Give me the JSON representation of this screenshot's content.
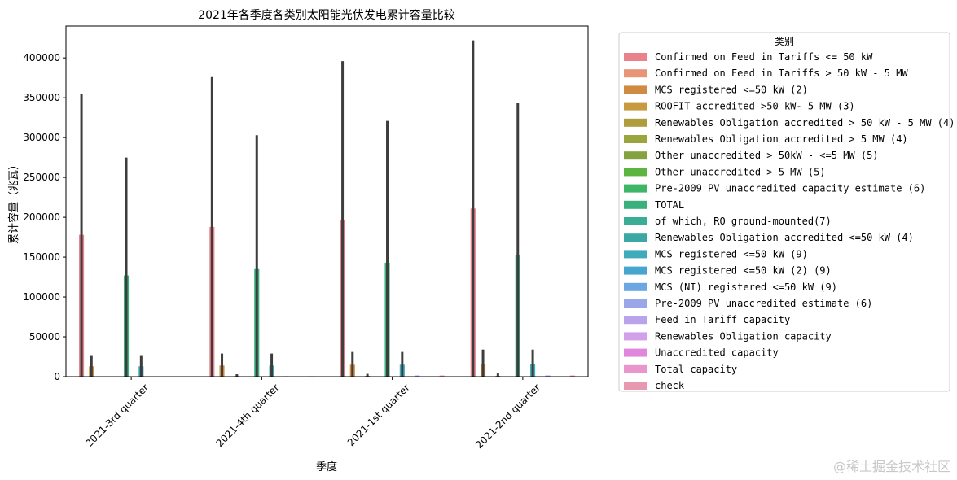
{
  "chart_data": {
    "type": "bar",
    "title": "2021年各季度各类别太阳能光伏发电累计容量比较",
    "xlabel": "季度",
    "ylabel": "累计容量（兆瓦）",
    "ylim": [
      0,
      440000
    ],
    "yticks": [
      0,
      50000,
      100000,
      150000,
      200000,
      250000,
      300000,
      350000,
      400000
    ],
    "ytick_labels": [
      "0",
      "50000",
      "100000",
      "150000",
      "200000",
      "250000",
      "300000",
      "350000",
      "400000"
    ],
    "categories": [
      "2021-3rd quarter",
      "2021-4th quarter",
      "2021-1st quarter",
      "2021-2nd quarter"
    ],
    "legend_title": "类别",
    "legend_position": "outside-right",
    "series": [
      {
        "name": "Confirmed on Feed in Tariffs  <= 50 kW",
        "color": "#e8828b",
        "values": [
          178000,
          188000,
          197000,
          211000
        ],
        "ci_high": [
          355000,
          376000,
          396000,
          422000
        ]
      },
      {
        "name": "Confirmed on Feed in Tariffs  > 50 kW - 5 MW",
        "color": "#e89477",
        "values": [
          null,
          null,
          null,
          null
        ],
        "ci_high": [
          null,
          null,
          null,
          null
        ]
      },
      {
        "name": "MCS registered <=50 kW (2)",
        "color": "#d08a41",
        "values": [
          13000,
          14000,
          15000,
          16000
        ],
        "ci_high": [
          27000,
          29000,
          31000,
          34000
        ]
      },
      {
        "name": "ROOFIT accredited >50 kW- 5 MW (3)",
        "color": "#c89a40",
        "values": [
          null,
          null,
          null,
          null
        ],
        "ci_high": [
          null,
          null,
          null,
          null
        ]
      },
      {
        "name": "Renewables Obligation accredited > 50 kW - 5 MW (4)",
        "color": "#ad9d3c",
        "values": [
          null,
          null,
          null,
          null
        ],
        "ci_high": [
          null,
          null,
          null,
          null
        ]
      },
      {
        "name": "Renewables Obligation accredited > 5 MW (4)",
        "color": "#9aa63d",
        "values": [
          null,
          1000,
          1000,
          1000
        ],
        "ci_high": [
          null,
          3000,
          3500,
          4000
        ]
      },
      {
        "name": "Other unaccredited > 50kW - <=5 MW (5)",
        "color": "#84a33f",
        "values": [
          null,
          null,
          null,
          null
        ],
        "ci_high": [
          null,
          null,
          null,
          null
        ]
      },
      {
        "name": "Other unaccredited > 5 MW (5)",
        "color": "#5db541",
        "values": [
          null,
          null,
          null,
          null
        ],
        "ci_high": [
          null,
          null,
          null,
          null
        ]
      },
      {
        "name": "Pre-2009 PV unaccredited capacity estimate (6)",
        "color": "#3fb567",
        "values": [
          null,
          null,
          null,
          null
        ],
        "ci_high": [
          null,
          null,
          null,
          null
        ]
      },
      {
        "name": "TOTAL",
        "color": "#3ab07e",
        "values": [
          127000,
          135000,
          143000,
          153000
        ],
        "ci_high": [
          275000,
          303000,
          321000,
          344000
        ]
      },
      {
        "name": "of which, RO ground-mounted(7)",
        "color": "#3aad94",
        "values": [
          null,
          null,
          null,
          null
        ],
        "ci_high": [
          null,
          null,
          null,
          null
        ]
      },
      {
        "name": "Renewables Obligation accredited <=50 kW (4)",
        "color": "#3ca8a5",
        "values": [
          null,
          null,
          null,
          null
        ],
        "ci_high": [
          null,
          null,
          null,
          null
        ]
      },
      {
        "name": "MCS registered <=50 kW (9)",
        "color": "#3fabbb",
        "values": [
          13000,
          14000,
          15000,
          16000
        ],
        "ci_high": [
          27000,
          29000,
          31000,
          34000
        ]
      },
      {
        "name": "MCS registered <=50 kW (2) (9)",
        "color": "#47a6d0",
        "values": [
          null,
          null,
          null,
          null
        ],
        "ci_high": [
          null,
          null,
          null,
          null
        ]
      },
      {
        "name": "MCS (NI) registered <=50 kW (9)",
        "color": "#6aa7e3",
        "values": [
          null,
          null,
          null,
          null
        ],
        "ci_high": [
          null,
          null,
          null,
          null
        ]
      },
      {
        "name": "Pre-2009 PV unaccredited estimate (6)",
        "color": "#9aa6e8",
        "values": [
          500,
          600,
          1500,
          1500
        ],
        "ci_high": [
          null,
          null,
          null,
          null
        ]
      },
      {
        "name": "Feed in Tariff capacity",
        "color": "#b9a3ea",
        "values": [
          null,
          null,
          null,
          null
        ],
        "ci_high": [
          null,
          null,
          null,
          null
        ]
      },
      {
        "name": "Renewables Obligation capacity",
        "color": "#d39fe9",
        "values": [
          null,
          null,
          null,
          null
        ],
        "ci_high": [
          null,
          null,
          null,
          null
        ]
      },
      {
        "name": "Unaccredited capacity",
        "color": "#e087dd",
        "values": [
          null,
          null,
          null,
          null
        ],
        "ci_high": [
          null,
          null,
          null,
          null
        ]
      },
      {
        "name": "Total capacity",
        "color": "#e996cc",
        "values": [
          null,
          null,
          null,
          null
        ],
        "ci_high": [
          null,
          null,
          null,
          null
        ]
      },
      {
        "name": "check",
        "color": "#e799b0",
        "values": [
          500,
          600,
          1500,
          1500
        ],
        "ci_high": [
          null,
          null,
          null,
          null
        ]
      }
    ]
  },
  "watermark": "@稀土掘金技术社区"
}
